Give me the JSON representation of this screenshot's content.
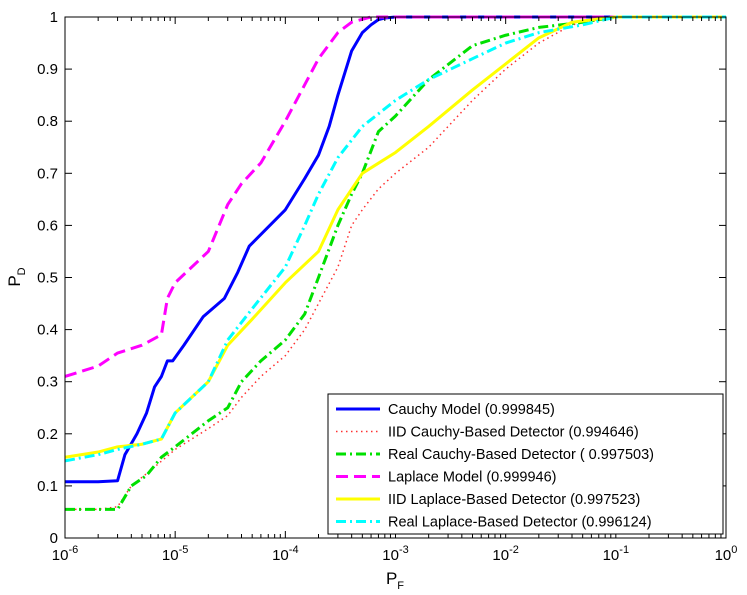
{
  "chart_data": {
    "type": "line",
    "title": "",
    "xlabel": "P",
    "xlabel_sub": "F",
    "ylabel": "P",
    "ylabel_sub": "D",
    "xscale": "log",
    "xlim": [
      1e-06,
      1
    ],
    "ylim": [
      0,
      1
    ],
    "x_ticks": [
      {
        "value": 1e-06,
        "base": "10",
        "exp": "-6"
      },
      {
        "value": 1e-05,
        "base": "10",
        "exp": "-5"
      },
      {
        "value": 0.0001,
        "base": "10",
        "exp": "-4"
      },
      {
        "value": 0.001,
        "base": "10",
        "exp": "-3"
      },
      {
        "value": 0.01,
        "base": "10",
        "exp": "-2"
      },
      {
        "value": 0.1,
        "base": "10",
        "exp": "-1"
      },
      {
        "value": 1,
        "base": "10",
        "exp": "0"
      }
    ],
    "y_ticks": [
      "0",
      "0.1",
      "0.2",
      "0.3",
      "0.4",
      "0.5",
      "0.6",
      "0.7",
      "0.8",
      "0.9",
      "1"
    ],
    "legend_position": "bottom-right",
    "series": [
      {
        "name": "Cauchy Model (0.999845)",
        "color": "#0000ff",
        "dash": "solid",
        "width": 3,
        "x": [
          1e-06,
          2e-06,
          3e-06,
          3.5e-06,
          4.5e-06,
          5.5e-06,
          6.5e-06,
          7.5e-06,
          8.5e-06,
          9.5e-06,
          1.2e-05,
          1.8e-05,
          2.8e-05,
          3.7e-05,
          4.7e-05,
          6.5e-05,
          0.0001,
          0.00015,
          0.0002,
          0.00025,
          0.0003,
          0.0004,
          0.0005,
          0.0006,
          0.0007,
          0.0008,
          0.001,
          0.002,
          0.01,
          0.1,
          1
        ],
        "y": [
          0.108,
          0.108,
          0.11,
          0.16,
          0.2,
          0.24,
          0.29,
          0.31,
          0.34,
          0.34,
          0.37,
          0.425,
          0.46,
          0.51,
          0.56,
          0.59,
          0.63,
          0.69,
          0.735,
          0.79,
          0.85,
          0.935,
          0.97,
          0.985,
          0.995,
          0.998,
          1,
          1,
          1,
          1,
          1
        ]
      },
      {
        "name": "IID Cauchy-Based Detector (0.994646)",
        "color": "#ff3030",
        "dash": "dot",
        "width": 1.5,
        "x": [
          1e-06,
          2e-06,
          3e-06,
          4e-06,
          6e-06,
          1e-05,
          2e-05,
          3e-05,
          4e-05,
          6e-05,
          0.0001,
          0.00015,
          0.0002,
          0.0003,
          0.0004,
          0.0005,
          0.0007,
          0.001,
          0.002,
          0.005,
          0.01,
          0.02,
          0.04,
          0.1,
          1
        ],
        "y": [
          0.055,
          0.055,
          0.06,
          0.1,
          0.13,
          0.17,
          0.21,
          0.235,
          0.27,
          0.31,
          0.35,
          0.4,
          0.45,
          0.52,
          0.6,
          0.63,
          0.67,
          0.7,
          0.75,
          0.84,
          0.9,
          0.95,
          0.985,
          1,
          1
        ]
      },
      {
        "name": "Real Cauchy-Based Detector ( 0.997503)",
        "color": "#00e000",
        "dash": "dashdot",
        "width": 3,
        "x": [
          1e-06,
          2e-06,
          3e-06,
          4e-06,
          5.5e-06,
          7.5e-06,
          1e-05,
          2e-05,
          3e-05,
          4e-05,
          6e-05,
          0.0001,
          0.00015,
          0.0002,
          0.0003,
          0.0004,
          0.0005,
          0.0007,
          0.001,
          0.002,
          0.005,
          0.01,
          0.02,
          0.05,
          0.1,
          1
        ],
        "y": [
          0.055,
          0.055,
          0.055,
          0.1,
          0.12,
          0.155,
          0.175,
          0.225,
          0.25,
          0.3,
          0.34,
          0.38,
          0.43,
          0.5,
          0.6,
          0.66,
          0.7,
          0.78,
          0.81,
          0.88,
          0.945,
          0.965,
          0.98,
          0.99,
          1,
          1
        ]
      },
      {
        "name": "Laplace Model (0.999946)",
        "color": "#ff00ff",
        "dash": "dash",
        "width": 3,
        "x": [
          1e-06,
          2e-06,
          3e-06,
          5e-06,
          7.5e-06,
          8.5e-06,
          1e-05,
          2e-05,
          3e-05,
          4e-05,
          6e-05,
          0.0001,
          0.00015,
          0.0002,
          0.0003,
          0.0004,
          0.0006,
          0.001,
          1
        ],
        "y": [
          0.31,
          0.33,
          0.355,
          0.37,
          0.39,
          0.46,
          0.49,
          0.55,
          0.64,
          0.68,
          0.72,
          0.8,
          0.87,
          0.92,
          0.97,
          0.99,
          1,
          1,
          1
        ]
      },
      {
        "name": "IID Laplace-Based Detector (0.997523)",
        "color": "#ffff00",
        "dash": "solid",
        "width": 3,
        "x": [
          1e-06,
          2e-06,
          3e-06,
          5e-06,
          7.5e-06,
          1e-05,
          2e-05,
          3e-05,
          5e-05,
          0.0001,
          0.0002,
          0.0003,
          0.0005,
          0.001,
          0.002,
          0.005,
          0.01,
          0.02,
          0.04,
          0.1,
          1
        ],
        "y": [
          0.155,
          0.165,
          0.175,
          0.18,
          0.19,
          0.24,
          0.3,
          0.37,
          0.42,
          0.49,
          0.55,
          0.63,
          0.7,
          0.74,
          0.79,
          0.86,
          0.91,
          0.96,
          0.99,
          1,
          1
        ]
      },
      {
        "name": "Real Laplace-Based Detector (0.996124)",
        "color": "#00ffff",
        "dash": "dashdot",
        "width": 3,
        "x": [
          1e-06,
          2e-06,
          3e-06,
          5e-06,
          7.5e-06,
          1e-05,
          2e-05,
          3e-05,
          5e-05,
          0.0001,
          0.00015,
          0.0002,
          0.0003,
          0.0005,
          0.001,
          0.002,
          0.005,
          0.01,
          0.02,
          0.05,
          0.1,
          1
        ],
        "y": [
          0.148,
          0.16,
          0.17,
          0.18,
          0.19,
          0.24,
          0.3,
          0.38,
          0.44,
          0.52,
          0.6,
          0.66,
          0.73,
          0.79,
          0.84,
          0.88,
          0.92,
          0.95,
          0.97,
          0.985,
          1,
          1
        ]
      }
    ]
  }
}
